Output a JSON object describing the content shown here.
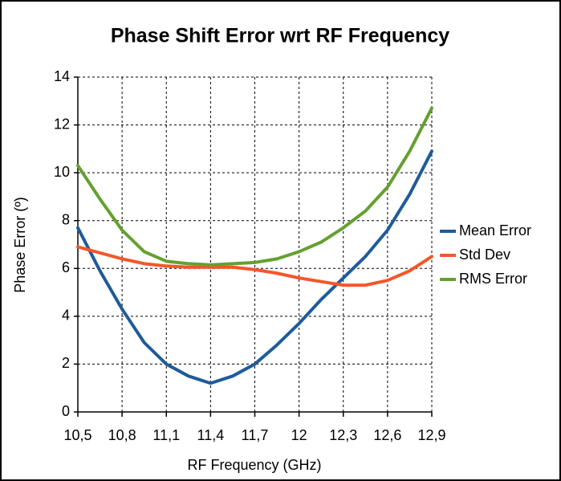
{
  "chart_data": {
    "type": "line",
    "title": "Phase Shift Error wrt RF Frequency",
    "x_label": "RF Frequency (GHz)",
    "y_label": "Phase Error (º)",
    "x": [
      10.5,
      10.65,
      10.8,
      10.95,
      11.1,
      11.25,
      11.4,
      11.55,
      11.7,
      11.85,
      12.0,
      12.15,
      12.3,
      12.45,
      12.6,
      12.75,
      12.9
    ],
    "series": [
      {
        "name": "Mean Error",
        "color": "#1f5b9a",
        "values": [
          7.7,
          5.9,
          4.3,
          2.9,
          2.0,
          1.5,
          1.2,
          1.5,
          2.0,
          2.8,
          3.7,
          4.7,
          5.6,
          6.5,
          7.6,
          9.1,
          10.9
        ]
      },
      {
        "name": "Std Dev",
        "color": "#f4572a",
        "values": [
          6.9,
          6.65,
          6.4,
          6.2,
          6.1,
          6.05,
          6.05,
          6.05,
          5.95,
          5.8,
          5.6,
          5.45,
          5.3,
          5.3,
          5.5,
          5.9,
          6.5
        ]
      },
      {
        "name": "RMS Error",
        "color": "#64a030",
        "values": [
          10.3,
          8.9,
          7.6,
          6.7,
          6.3,
          6.2,
          6.15,
          6.2,
          6.25,
          6.4,
          6.7,
          7.1,
          7.7,
          8.4,
          9.4,
          10.9,
          12.7
        ]
      }
    ],
    "xlim": [
      10.5,
      12.9
    ],
    "xticks": [
      {
        "value": 10.5,
        "label": "10,5"
      },
      {
        "value": 10.8,
        "label": "10,8"
      },
      {
        "value": 11.1,
        "label": "11,1"
      },
      {
        "value": 11.4,
        "label": "11,4"
      },
      {
        "value": 11.7,
        "label": "11,7"
      },
      12,
      {
        "value": 12.3,
        "label": "12,3"
      },
      {
        "value": 12.6,
        "label": "12,6"
      },
      {
        "value": 12.9,
        "label": "12,9"
      }
    ],
    "ylim": [
      0,
      14
    ],
    "yticks": [
      0,
      2,
      4,
      6,
      8,
      10,
      12,
      14
    ],
    "grid": true,
    "legend": "right"
  }
}
